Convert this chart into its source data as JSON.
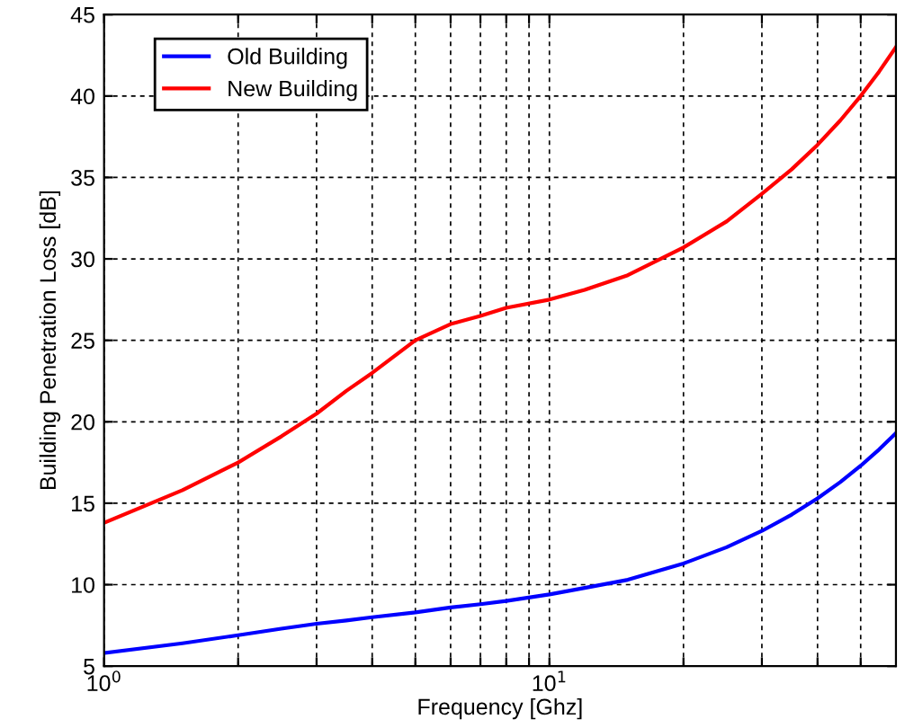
{
  "chart_data": {
    "type": "line",
    "xlabel": "Frequency [Ghz]",
    "ylabel": "Building Penetration Loss [dB]",
    "log": "x",
    "x": [
      1,
      1.5,
      2,
      2.5,
      3,
      3.5,
      4,
      5,
      6,
      7,
      8,
      10,
      12,
      15,
      20,
      25,
      30,
      35,
      40,
      45,
      50,
      55,
      60
    ],
    "series": [
      {
        "name": "Old Building",
        "color": "#0000ff",
        "values": [
          5.8,
          6.4,
          6.9,
          7.3,
          7.6,
          7.8,
          8.0,
          8.3,
          8.6,
          8.8,
          9.0,
          9.4,
          9.8,
          10.3,
          11.3,
          12.3,
          13.3,
          14.3,
          15.3,
          16.3,
          17.3,
          18.3,
          19.3
        ]
      },
      {
        "name": "New Building",
        "color": "#ff0000",
        "values": [
          13.8,
          15.8,
          17.5,
          19.1,
          20.5,
          21.9,
          23.0,
          25.0,
          26.0,
          26.5,
          27.0,
          27.5,
          28.1,
          29.0,
          30.7,
          32.3,
          34.0,
          35.5,
          37.0,
          38.5,
          40.0,
          41.5,
          43.0
        ]
      }
    ],
    "xlim": [
      1,
      60
    ],
    "ylim": [
      5,
      45
    ],
    "xticks": [
      {
        "value": 1,
        "label": "10$^{0}$"
      },
      {
        "value": 2,
        "label": null
      },
      {
        "value": 3,
        "label": null
      },
      {
        "value": 4,
        "label": null
      },
      {
        "value": 5,
        "label": null
      },
      {
        "value": 6,
        "label": null
      },
      {
        "value": 7,
        "label": null
      },
      {
        "value": 8,
        "label": null
      },
      {
        "value": 9,
        "label": null
      },
      {
        "value": 10,
        "label": "10$^{1}$"
      },
      {
        "value": 20,
        "label": null
      },
      {
        "value": 30,
        "label": null
      },
      {
        "value": 40,
        "label": null
      },
      {
        "value": 50,
        "label": null
      }
    ],
    "yticks": [
      5,
      10,
      15,
      20,
      25,
      30,
      35,
      40,
      45
    ],
    "grid": true,
    "legend": "top left",
    "marker": "none",
    "line_style": "solid"
  }
}
